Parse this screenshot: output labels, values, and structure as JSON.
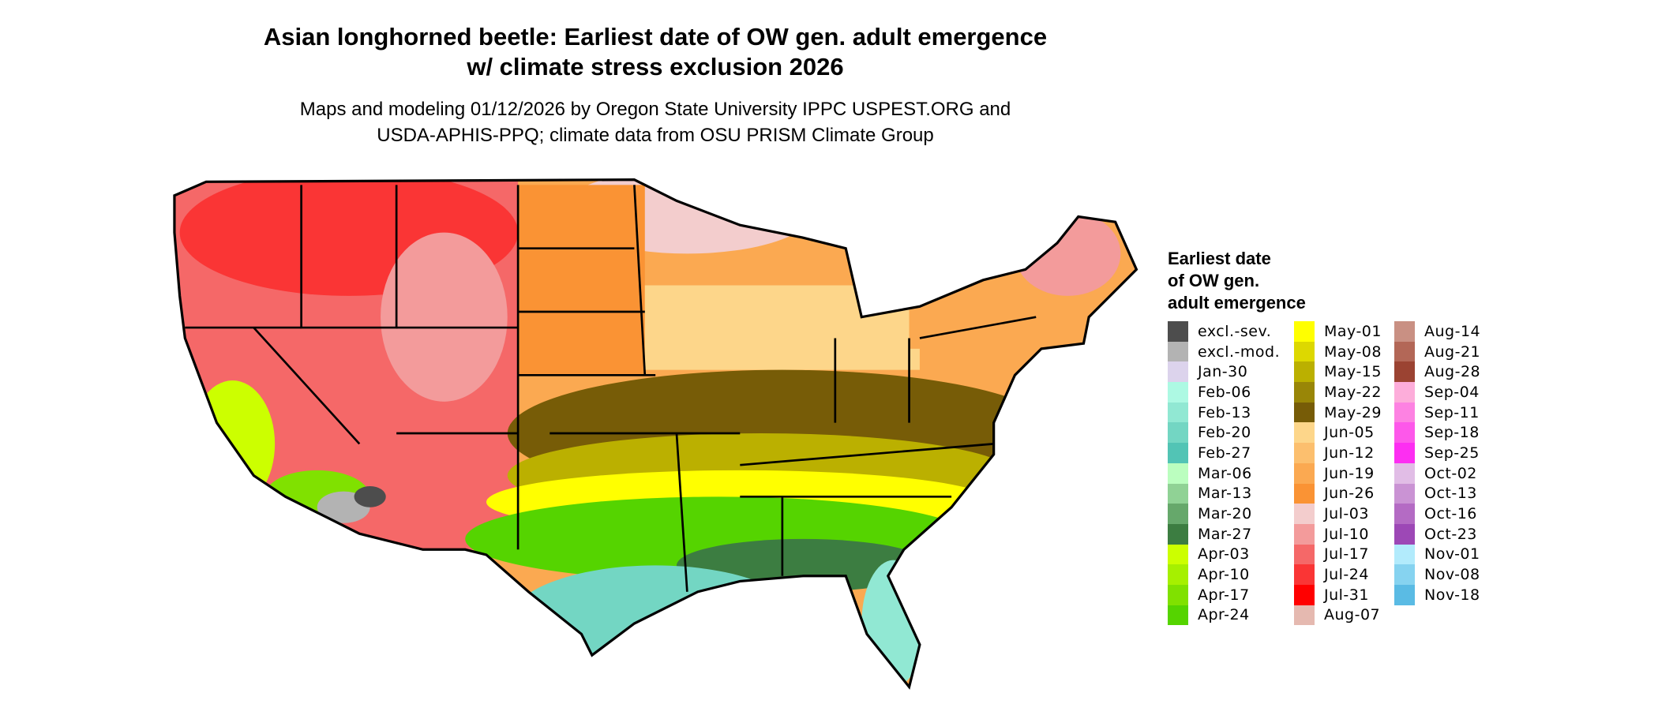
{
  "title": {
    "line1": "Asian longhorned beetle: Earliest date of OW gen. adult emergence",
    "line2": "w/ climate stress exclusion 2026"
  },
  "subtitle": {
    "line1": "Maps and modeling 01/12/2026 by Oregon State University IPPC USPEST.ORG and",
    "line2": "USDA-APHIS-PPQ; climate data from OSU PRISM Climate Group"
  },
  "legend": {
    "title_lines": [
      "Earliest date",
      "of OW gen.",
      "adult emergence"
    ],
    "columns": [
      [
        {
          "label": "excl.-sev.",
          "color": "#4d4d4d"
        },
        {
          "label": "excl.-mod.",
          "color": "#b3b3b3"
        },
        {
          "label": "Jan-30",
          "color": "#dcd3ec"
        },
        {
          "label": "Feb-06",
          "color": "#adf9e3"
        },
        {
          "label": "Feb-13",
          "color": "#91e8d3"
        },
        {
          "label": "Feb-20",
          "color": "#73d6c3"
        },
        {
          "label": "Feb-27",
          "color": "#52c4b5"
        },
        {
          "label": "Mar-06",
          "color": "#bbfebf"
        },
        {
          "label": "Mar-13",
          "color": "#90d295"
        },
        {
          "label": "Mar-20",
          "color": "#66a86b"
        },
        {
          "label": "Mar-27",
          "color": "#3c7d41"
        },
        {
          "label": "Apr-03",
          "color": "#ccff00"
        },
        {
          "label": "Apr-10",
          "color": "#a6f000"
        },
        {
          "label": "Apr-17",
          "color": "#80e100"
        },
        {
          "label": "Apr-24",
          "color": "#55d400"
        }
      ],
      [
        {
          "label": "May-01",
          "color": "#ffff00"
        },
        {
          "label": "May-08",
          "color": "#ddd800"
        },
        {
          "label": "May-15",
          "color": "#bbb000"
        },
        {
          "label": "May-22",
          "color": "#998607"
        },
        {
          "label": "May-29",
          "color": "#775c07"
        },
        {
          "label": "Jun-05",
          "color": "#fdd68a"
        },
        {
          "label": "Jun-12",
          "color": "#fcbf6e"
        },
        {
          "label": "Jun-19",
          "color": "#fba951"
        },
        {
          "label": "Jun-26",
          "color": "#fa9334"
        },
        {
          "label": "Jul-03",
          "color": "#f3cdcd"
        },
        {
          "label": "Jul-10",
          "color": "#f39b9b"
        },
        {
          "label": "Jul-17",
          "color": "#f56868"
        },
        {
          "label": "Jul-24",
          "color": "#fa3535"
        },
        {
          "label": "Jul-31",
          "color": "#ff0000"
        },
        {
          "label": "Aug-07",
          "color": "#e5b9b0"
        }
      ],
      [
        {
          "label": "Aug-14",
          "color": "#c99083"
        },
        {
          "label": "Aug-21",
          "color": "#b36757"
        },
        {
          "label": "Aug-28",
          "color": "#9b4332"
        },
        {
          "label": "Sep-04",
          "color": "#fdadda"
        },
        {
          "label": "Sep-11",
          "color": "#fd82e2"
        },
        {
          "label": "Sep-18",
          "color": "#fd58ea"
        },
        {
          "label": "Sep-25",
          "color": "#fd2ef2"
        },
        {
          "label": "Oct-02",
          "color": "#e1bde6"
        },
        {
          "label": "Oct-13",
          "color": "#ca93d4"
        },
        {
          "label": "Oct-16",
          "color": "#b46bc4"
        },
        {
          "label": "Oct-23",
          "color": "#9d48b6"
        },
        {
          "label": "Nov-01",
          "color": "#b2ebfc"
        },
        {
          "label": "Nov-08",
          "color": "#86d3f0"
        },
        {
          "label": "Nov-18",
          "color": "#5abbe4"
        }
      ]
    ]
  }
}
